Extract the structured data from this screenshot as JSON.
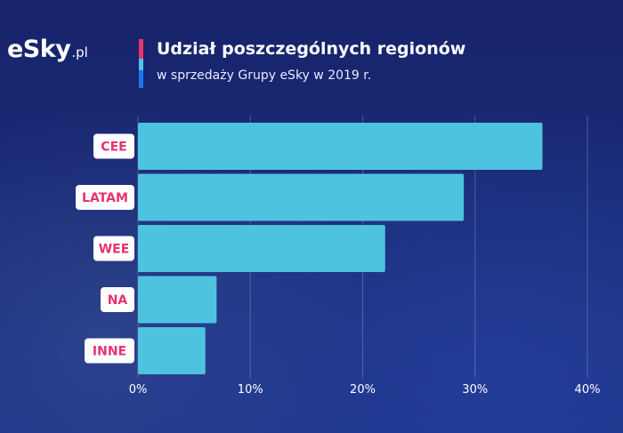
{
  "brand": {
    "logo_text": "eSky",
    "logo_domain": ".pl",
    "accent_colors": [
      "#e8336f",
      "#4fc3e0",
      "#1e73e8"
    ]
  },
  "header": {
    "title": "Udział poszczególnych regionów",
    "subtitle": "w sprzedaży Grupy eSky w 2019 r."
  },
  "chart_data": {
    "type": "bar",
    "orientation": "horizontal",
    "categories": [
      "CEE",
      "LATAM",
      "WEE",
      "NA",
      "INNE"
    ],
    "values": [
      36,
      29,
      22,
      7,
      6
    ],
    "unit": "%",
    "xlim": [
      0,
      40
    ],
    "xticks": [
      "0%",
      "10%",
      "20%",
      "30%",
      "40%"
    ],
    "grid": true,
    "bar_color": "#4dc3df",
    "label_bg_color": "#ffffff",
    "label_text_color": "#e6336e"
  }
}
